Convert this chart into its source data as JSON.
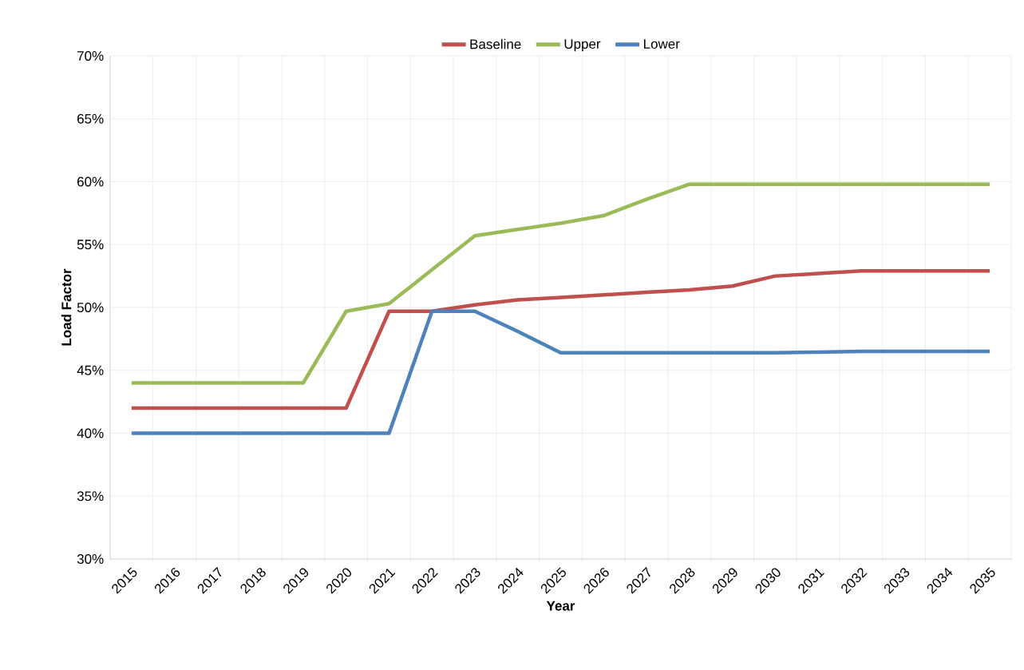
{
  "chart_data": {
    "type": "line",
    "xlabel": "Year",
    "ylabel": "Load Factor",
    "categories": [
      "2015",
      "2016",
      "2017",
      "2018",
      "2019",
      "2020",
      "2021",
      "2022",
      "2023",
      "2024",
      "2025",
      "2026",
      "2027",
      "2028",
      "2029",
      "2030",
      "2031",
      "2032",
      "2033",
      "2034",
      "2035"
    ],
    "series": [
      {
        "name": "Baseline",
        "color": "#c0504d",
        "values": [
          42,
          42,
          42,
          42,
          42,
          42,
          49.7,
          49.7,
          50.2,
          50.6,
          50.8,
          51.0,
          51.2,
          51.4,
          51.7,
          52.5,
          52.7,
          52.9,
          52.9,
          52.9,
          52.9
        ]
      },
      {
        "name": "Upper",
        "color": "#9bbb59",
        "values": [
          44,
          44,
          44,
          44,
          44,
          49.7,
          50.3,
          53.0,
          55.7,
          56.2,
          56.7,
          57.3,
          58.6,
          59.8,
          59.8,
          59.8,
          59.8,
          59.8,
          59.8,
          59.8,
          59.8
        ]
      },
      {
        "name": "Lower",
        "color": "#4f81bd",
        "values": [
          40,
          40,
          40,
          40,
          40,
          40,
          40,
          49.7,
          49.7,
          48.1,
          46.4,
          46.4,
          46.4,
          46.4,
          46.4,
          46.4,
          46.45,
          46.5,
          46.5,
          46.5,
          46.5
        ]
      }
    ],
    "ylim": [
      30,
      70
    ],
    "yticks": [
      {
        "value": 30,
        "label": "30%"
      },
      {
        "value": 35,
        "label": "35%"
      },
      {
        "value": 40,
        "label": "40%"
      },
      {
        "value": 45,
        "label": "45%"
      },
      {
        "value": 50,
        "label": "50%"
      },
      {
        "value": 55,
        "label": "55%"
      },
      {
        "value": 60,
        "label": "60%"
      },
      {
        "value": 65,
        "label": "65%"
      },
      {
        "value": 70,
        "label": "70%"
      }
    ],
    "grid": true,
    "legend": "top",
    "marker": "none",
    "line_style": "solid"
  }
}
